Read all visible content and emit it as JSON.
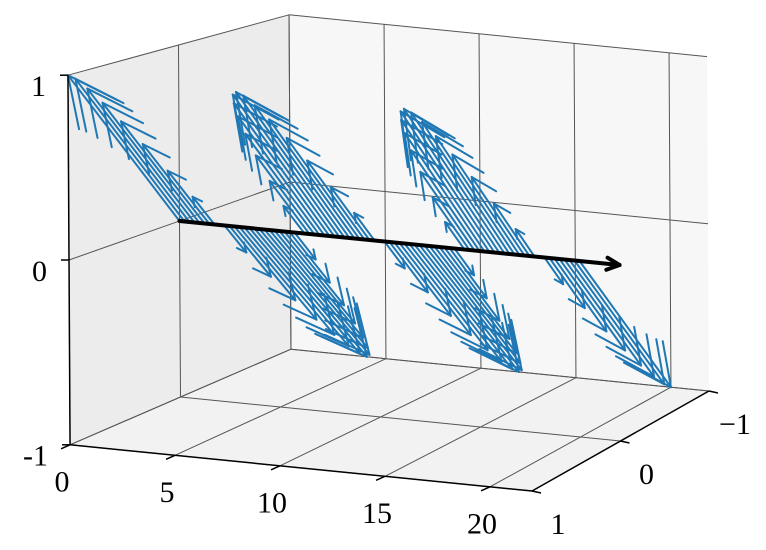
{
  "chart_data": {
    "type": "quiver3d",
    "color": "#1f77b4",
    "x": [
      0,
      0.25,
      0.5,
      0.75,
      1,
      1.25,
      1.5,
      1.75,
      2,
      2.25,
      2.5,
      2.75,
      3,
      3.25,
      3.5,
      3.75,
      4,
      4.25,
      4.5,
      4.75,
      5,
      5.25,
      5.5,
      5.75,
      6,
      6.25,
      6.5,
      6.75,
      7,
      7.25,
      7.5,
      7.75,
      8,
      8.25,
      8.5,
      8.75,
      9,
      9.25,
      9.5,
      9.75,
      10,
      10.25,
      10.5,
      10.75,
      11,
      11.25,
      11.5,
      11.75,
      12,
      12.25,
      12.5,
      12.75,
      13,
      13.25,
      13.5,
      13.75,
      14,
      14.25,
      14.5,
      14.75,
      15,
      15.25,
      15.5,
      15.75,
      16,
      16.25,
      16.5,
      16.75,
      17,
      17.25,
      17.5,
      17.75,
      18,
      18.25,
      18.5,
      18.75,
      19,
      19.25,
      19.5,
      19.75,
      20
    ],
    "y": [
      1,
      0.98,
      0.92,
      0.83,
      0.71,
      0.56,
      0.38,
      0.2,
      0,
      -0.2,
      -0.38,
      -0.56,
      -0.71,
      -0.83,
      -0.92,
      -0.98,
      -1,
      -0.98,
      -0.92,
      -0.83,
      -0.71,
      -0.56,
      -0.38,
      -0.2,
      0,
      0.2,
      0.38,
      0.56,
      0.71,
      0.83,
      0.92,
      0.98,
      1,
      0.98,
      0.92,
      0.83,
      0.71,
      0.56,
      0.38,
      0.2,
      0,
      -0.2,
      -0.38,
      -0.56,
      -0.71,
      -0.83,
      -0.92,
      -0.98,
      -1,
      -0.98,
      -0.92,
      -0.83,
      -0.71,
      -0.56,
      -0.38,
      -0.2,
      0,
      0.2,
      0.38,
      0.56,
      0.71,
      0.83,
      0.92,
      0.98,
      1,
      0.98,
      0.92,
      0.83,
      0.71,
      0.56,
      0.38,
      0.2,
      0,
      -0.2,
      -0.38,
      -0.56,
      -0.71,
      -0.83,
      -0.92,
      -0.98,
      -1
    ],
    "z": [
      1,
      0.98,
      0.92,
      0.83,
      0.71,
      0.56,
      0.38,
      0.2,
      0,
      -0.2,
      -0.38,
      -0.56,
      -0.71,
      -0.83,
      -0.92,
      -0.98,
      -1,
      -0.98,
      -0.92,
      -0.83,
      -0.71,
      -0.56,
      -0.38,
      -0.2,
      0,
      0.2,
      0.38,
      0.56,
      0.71,
      0.83,
      0.92,
      0.98,
      1,
      0.98,
      0.92,
      0.83,
      0.71,
      0.56,
      0.38,
      0.2,
      0,
      -0.2,
      -0.38,
      -0.56,
      -0.71,
      -0.83,
      -0.92,
      -0.98,
      -1,
      -0.98,
      -0.92,
      -0.83,
      -0.71,
      -0.56,
      -0.38,
      -0.2,
      0,
      0.2,
      0.38,
      0.56,
      0.71,
      0.83,
      0.92,
      0.98,
      1,
      0.98,
      0.92,
      0.83,
      0.71,
      0.56,
      0.38,
      0.2,
      0,
      -0.2,
      -0.38,
      -0.56,
      -0.71,
      -0.83,
      -0.92,
      -0.98,
      -1
    ],
    "axis_arrow_x": [
      0,
      22
    ],
    "axis_arrow_color": "#000000",
    "xlim": [
      0,
      22
    ],
    "xticks": [
      0,
      5,
      10,
      15,
      20
    ],
    "ylim": [
      -1,
      1
    ],
    "yticks": [
      {
        "value": -1,
        "label": "−1"
      },
      0,
      1
    ],
    "zlim": [
      -1,
      1
    ],
    "zticks": [
      -1,
      0,
      1
    ],
    "grid": true
  }
}
